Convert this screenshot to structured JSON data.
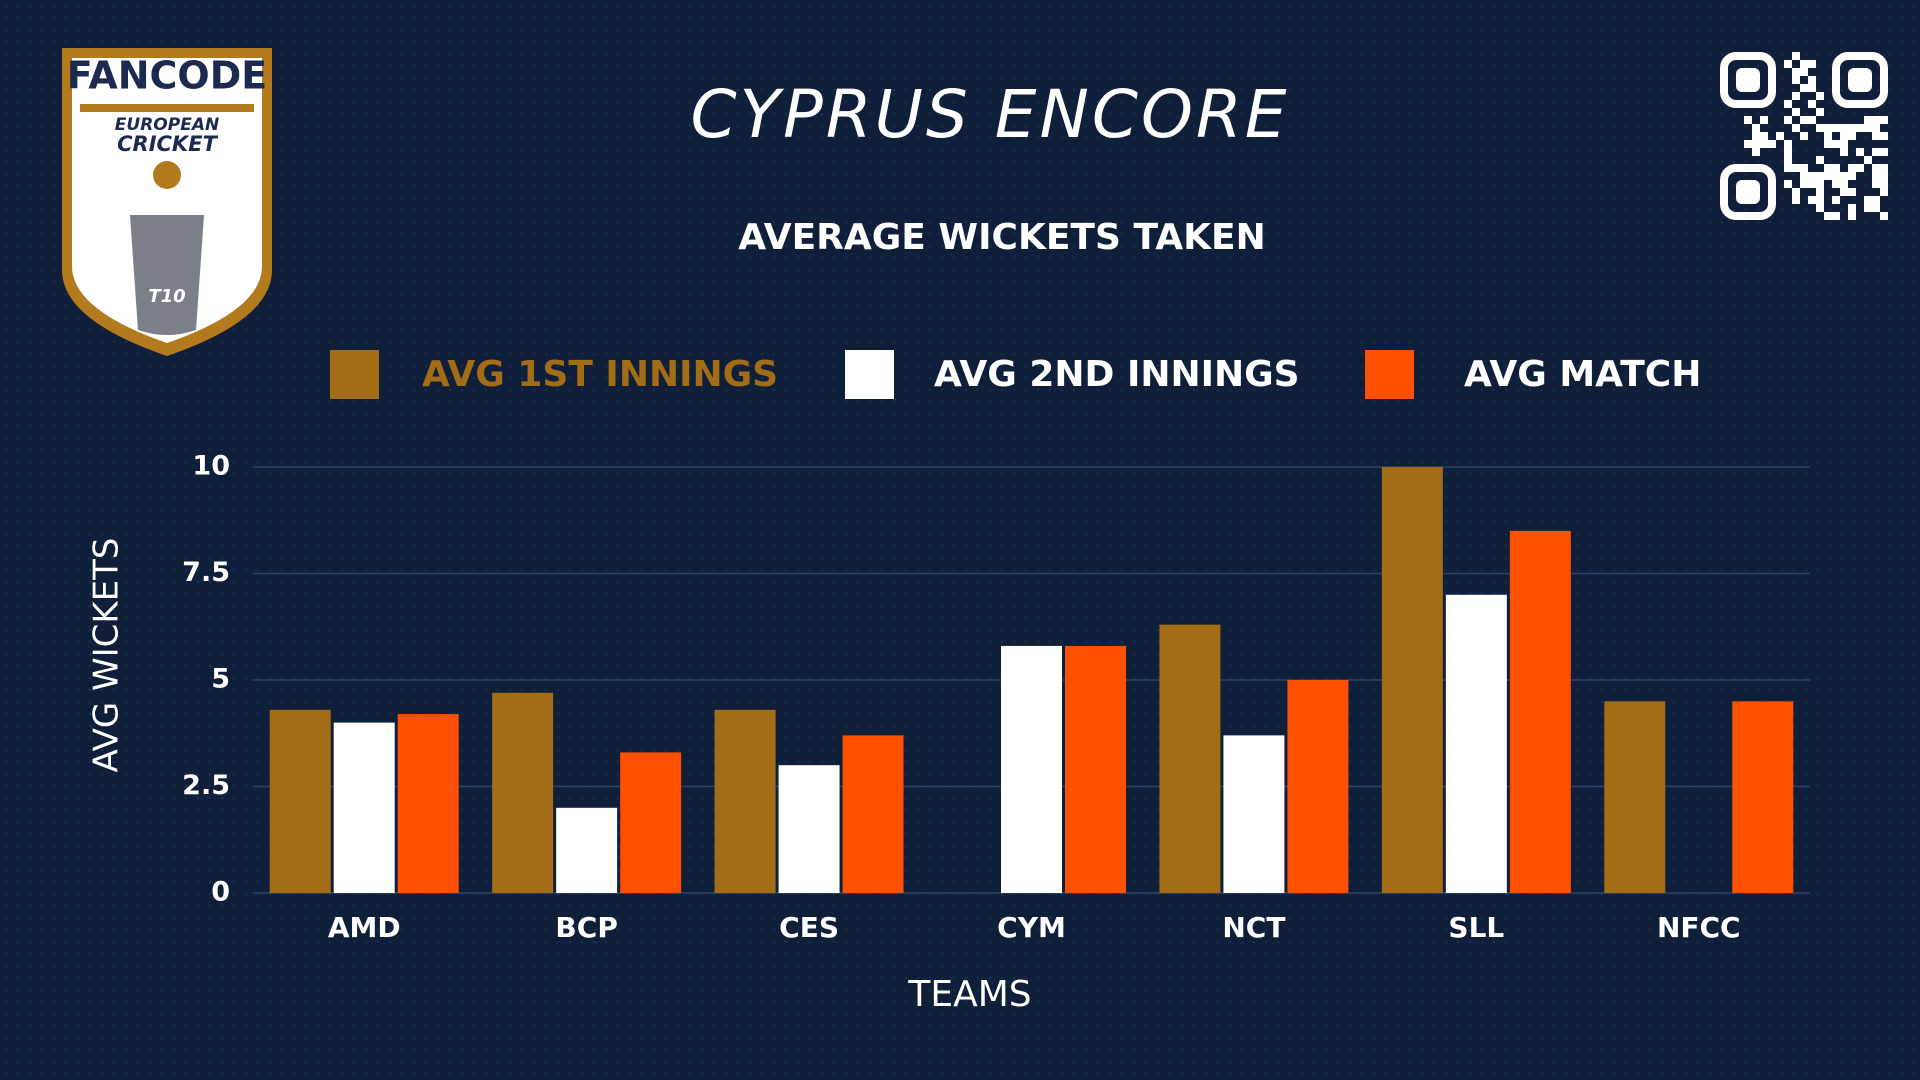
{
  "logo": {
    "brand": "FANCODE",
    "line1": "EUROPEAN",
    "line2": "CRICKET",
    "badge": "T10"
  },
  "chart_data": {
    "type": "bar",
    "title": "CYPRUS ENCORE",
    "subtitle": "AVERAGE WICKETS TAKEN",
    "x_label": "TEAMS",
    "y_label": "AVG WICKETS",
    "categories": [
      "AMD",
      "BCP",
      "CES",
      "CYM",
      "NCT",
      "SLL",
      "NFCC"
    ],
    "series": [
      {
        "name": "AVG 1ST INNINGS",
        "color": "#a36c16",
        "values": [
          4.3,
          4.7,
          4.3,
          null,
          6.3,
          10,
          4.5
        ]
      },
      {
        "name": "AVG 2ND INNINGS",
        "color": "#ffffff",
        "values": [
          4.0,
          2.0,
          3.0,
          5.8,
          3.7,
          7.0,
          null
        ]
      },
      {
        "name": "AVG MATCH",
        "color": "#ff5000",
        "values": [
          4.2,
          3.3,
          3.7,
          5.8,
          5.0,
          8.5,
          4.5
        ]
      }
    ],
    "ylim": [
      0,
      10
    ],
    "yticks": [
      0,
      2.5,
      5,
      7.5,
      10
    ],
    "grid": true
  }
}
